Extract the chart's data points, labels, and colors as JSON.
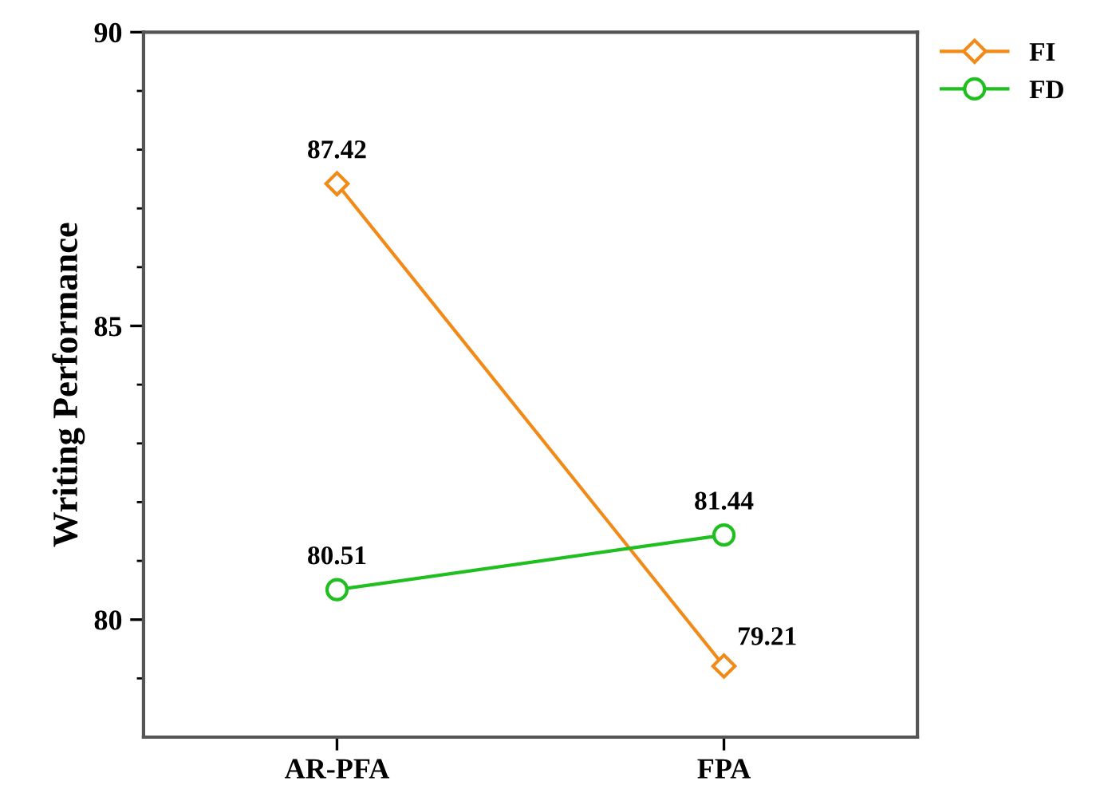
{
  "chart_data": {
    "type": "line",
    "ylabel": "Writing Performance",
    "categories": [
      "AR-PFA",
      "FPA"
    ],
    "series": [
      {
        "name": "FI",
        "color": "#f28a17",
        "values": [
          87.42,
          79.21
        ],
        "marker": "diamond"
      },
      {
        "name": "FD",
        "color": "#1fbf1f",
        "values": [
          80.51,
          81.44
        ],
        "marker": "circle"
      }
    ],
    "ylim": [
      78,
      90
    ],
    "yticks": [
      {
        "value": 79,
        "label": null
      },
      80,
      {
        "value": 81,
        "label": null
      },
      {
        "value": 82,
        "label": null
      },
      {
        "value": 83,
        "label": null
      },
      {
        "value": 84,
        "label": null
      },
      85,
      {
        "value": 86,
        "label": null
      },
      {
        "value": 87,
        "label": null
      },
      {
        "value": 88,
        "label": null
      },
      {
        "value": 89,
        "label": null
      },
      90
    ],
    "data_labels": true,
    "legend": "top right",
    "grid": false,
    "line_style": "solid"
  }
}
